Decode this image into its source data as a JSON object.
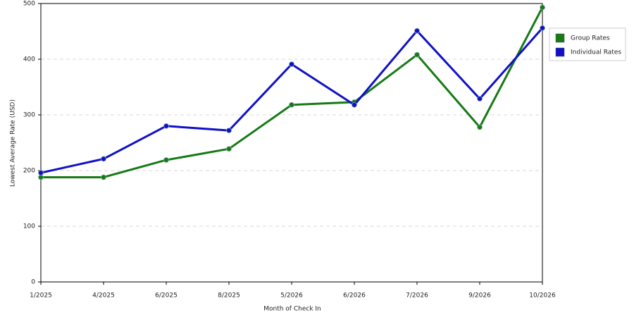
{
  "chart_data": {
    "type": "line",
    "x_label": "Month of Check In",
    "y_label": "Lowest Average Rate (USD)",
    "categories": [
      "1/2025",
      "4/2025",
      "6/2025",
      "8/2025",
      "5/2026",
      "6/2026",
      "7/2026",
      "9/2026",
      "10/2026"
    ],
    "series": [
      {
        "name": "Group Rates",
        "color": "#167a16",
        "values": [
          188,
          188,
          219,
          239,
          318,
          323,
          408,
          278,
          493
        ]
      },
      {
        "name": "Individual Rates",
        "color": "#1010c8",
        "values": [
          196,
          221,
          280,
          272,
          391,
          318,
          451,
          329,
          456
        ]
      }
    ],
    "ylim": [
      0,
      500
    ],
    "yticks": [
      0,
      100,
      200,
      300,
      400,
      500
    ],
    "grid": true,
    "legend": "right"
  }
}
